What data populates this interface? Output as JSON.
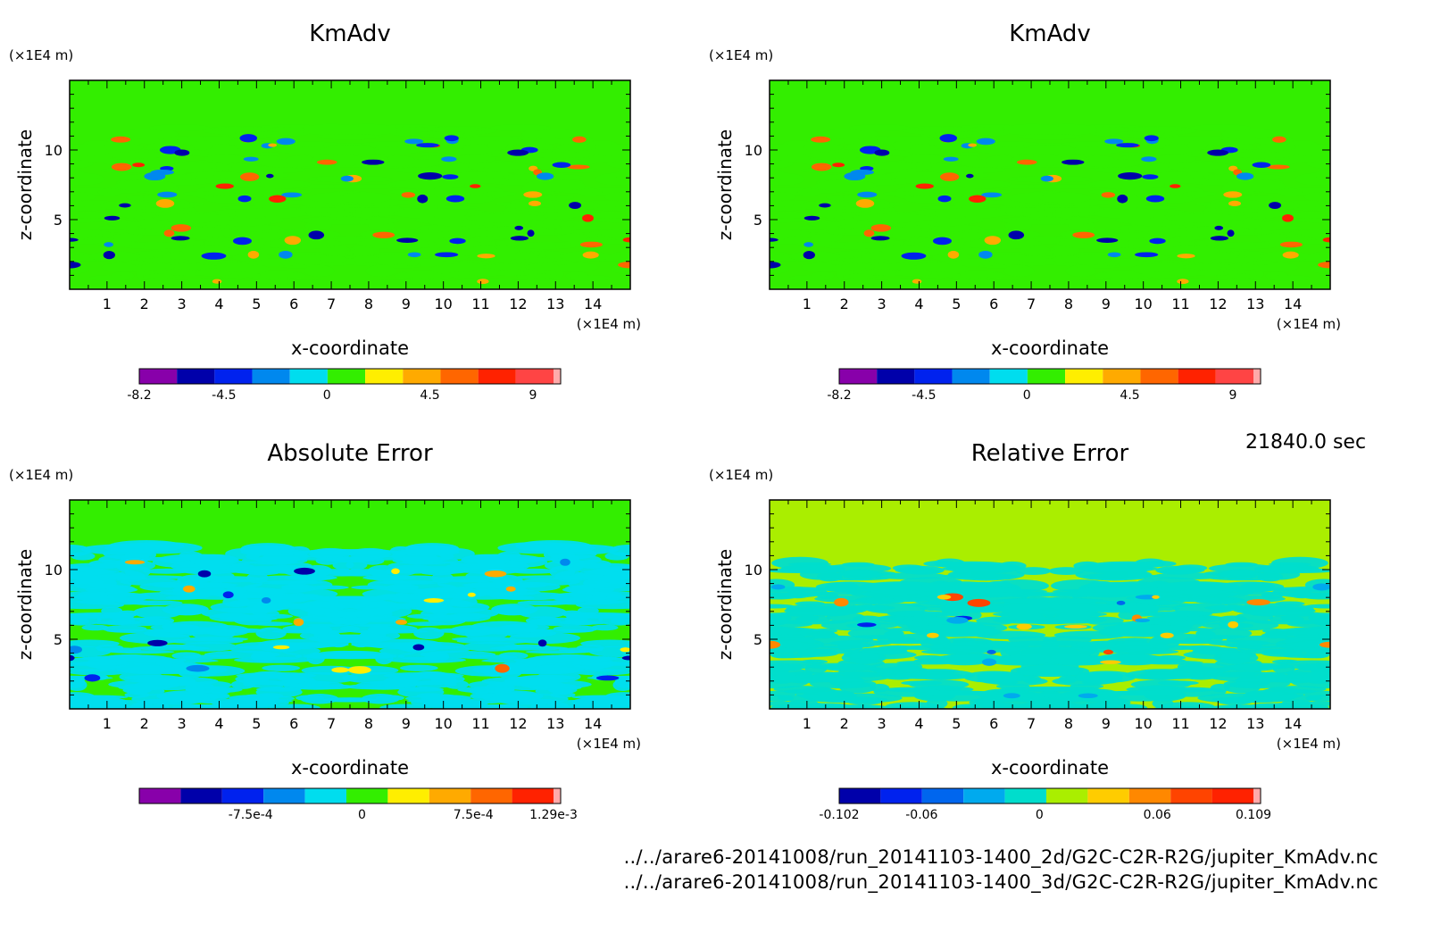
{
  "timestamp": "21840.0 sec",
  "file_paths": [
    "../../arare6-20141008/run_20141103-1400_2d/G2C-C2R-R2G/jupiter_KmAdv.nc",
    "../../arare6-20141008/run_20141103-1400_3d/G2C-C2R-R2G/jupiter_KmAdv.nc"
  ],
  "chart_data": [
    {
      "type": "heatmap",
      "title": "KmAdv",
      "xlabel": "x-coordinate",
      "ylabel": "z-coordinate",
      "x_unit": "(×1E4 m)",
      "y_unit": "(×1E4 m)",
      "xlim": [
        0,
        15
      ],
      "ylim": [
        0,
        15
      ],
      "x_ticks": [
        1,
        2,
        3,
        4,
        5,
        6,
        7,
        8,
        9,
        10,
        11,
        12,
        13,
        14
      ],
      "y_ticks": [
        5,
        10
      ],
      "background_color": "#33ee00",
      "colorbar": {
        "colors": [
          "#8800aa",
          "#0000aa",
          "#0022ee",
          "#0088ee",
          "#00ddee",
          "#33ee00",
          "#ffee00",
          "#ffaa00",
          "#ff6600",
          "#ff2200",
          "#ff4444",
          "#ffaaaa"
        ],
        "tick_labels": [
          "-8.2",
          "-4.5",
          "0",
          "4.5",
          "9"
        ],
        "tick_values": [
          -8.2,
          -4.5,
          0,
          4.5,
          9
        ],
        "range": [
          -8.2,
          9.9
        ]
      }
    },
    {
      "type": "heatmap",
      "title": "KmAdv",
      "xlabel": "x-coordinate",
      "ylabel": "z-coordinate",
      "x_unit": "(×1E4 m)",
      "y_unit": "(×1E4 m)",
      "xlim": [
        0,
        15
      ],
      "ylim": [
        0,
        15
      ],
      "x_ticks": [
        1,
        2,
        3,
        4,
        5,
        6,
        7,
        8,
        9,
        10,
        11,
        12,
        13,
        14
      ],
      "y_ticks": [
        5,
        10
      ],
      "background_color": "#33ee00",
      "colorbar": {
        "colors": [
          "#8800aa",
          "#0000aa",
          "#0022ee",
          "#0088ee",
          "#00ddee",
          "#33ee00",
          "#ffee00",
          "#ffaa00",
          "#ff6600",
          "#ff2200",
          "#ff4444",
          "#ffaaaa"
        ],
        "tick_labels": [
          "-8.2",
          "-4.5",
          "0",
          "4.5",
          "9"
        ],
        "tick_values": [
          -8.2,
          -4.5,
          0,
          4.5,
          9
        ],
        "range": [
          -8.2,
          9.9
        ]
      }
    },
    {
      "type": "heatmap",
      "title": "Absolute Error",
      "xlabel": "x-coordinate",
      "ylabel": "z-coordinate",
      "x_unit": "(×1E4 m)",
      "y_unit": "(×1E4 m)",
      "xlim": [
        0,
        15
      ],
      "ylim": [
        0,
        15
      ],
      "x_ticks": [
        1,
        2,
        3,
        4,
        5,
        6,
        7,
        8,
        9,
        10,
        11,
        12,
        13,
        14
      ],
      "y_ticks": [
        5,
        10
      ],
      "background_color": "#33ee00",
      "colorbar": {
        "colors": [
          "#8800aa",
          "#0000aa",
          "#0022ee",
          "#0088ee",
          "#00ddee",
          "#33ee00",
          "#ffee00",
          "#ffaa00",
          "#ff6600",
          "#ff2200",
          "#ffaaaa"
        ],
        "tick_labels": [
          "-7.5e-4",
          "0",
          "7.5e-4",
          "1.29e-3"
        ],
        "tick_values": [
          -0.00075,
          0,
          0.00075,
          0.00129
        ],
        "range": [
          -0.0015,
          0.00129
        ]
      }
    },
    {
      "type": "heatmap",
      "title": "Relative Error",
      "xlabel": "x-coordinate",
      "ylabel": "z-coordinate",
      "x_unit": "(×1E4 m)",
      "y_unit": "(×1E4 m)",
      "xlim": [
        0,
        15
      ],
      "ylim": [
        0,
        15
      ],
      "x_ticks": [
        1,
        2,
        3,
        4,
        5,
        6,
        7,
        8,
        9,
        10,
        11,
        12,
        13,
        14
      ],
      "y_ticks": [
        5,
        10
      ],
      "background_color": "#aaee00",
      "colorbar": {
        "colors": [
          "#0000aa",
          "#0022ee",
          "#0066ee",
          "#00aaee",
          "#00ddcc",
          "#aaee00",
          "#ffcc00",
          "#ff8800",
          "#ff4400",
          "#ff2200",
          "#ffaaaa"
        ],
        "tick_labels": [
          "-0.102",
          "-0.06",
          "0",
          "0.06",
          "0.109"
        ],
        "tick_values": [
          -0.102,
          -0.06,
          0,
          0.06,
          0.109
        ],
        "range": [
          -0.102,
          0.109
        ]
      }
    }
  ]
}
